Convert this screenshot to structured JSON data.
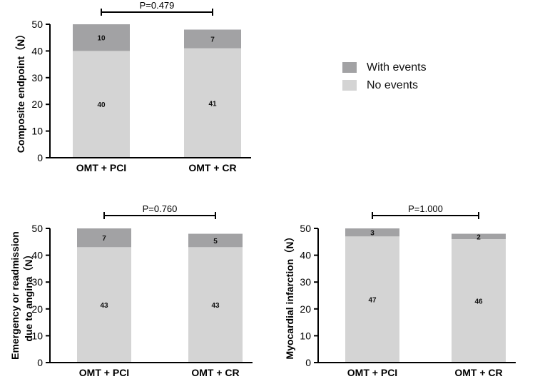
{
  "colors": {
    "with_events": "#a2a2a4",
    "no_events": "#d4d4d4",
    "axis": "#000000"
  },
  "legend": {
    "with_events": "With events",
    "no_events": "No events"
  },
  "chart_data": [
    {
      "type": "bar",
      "stacked": true,
      "categories": [
        "OMT + PCI",
        "OMT + CR"
      ],
      "series": [
        {
          "name": "No events",
          "values": [
            40,
            41
          ]
        },
        {
          "name": "With events",
          "values": [
            10,
            7
          ]
        }
      ],
      "ylabel": "Composite endpoint（N）",
      "ylim": [
        0,
        50
      ],
      "yticks": [
        "0",
        "10",
        "20",
        "30",
        "40",
        "50"
      ],
      "annotation": "P=0.479"
    },
    {
      "type": "bar",
      "stacked": true,
      "categories": [
        "OMT + PCI",
        "OMT + CR"
      ],
      "series": [
        {
          "name": "No events",
          "values": [
            43,
            43
          ]
        },
        {
          "name": "With events",
          "values": [
            7,
            5
          ]
        }
      ],
      "ylabel": [
        "Emergency or readmission",
        "due to angina（N）"
      ],
      "ylim": [
        0,
        50
      ],
      "yticks": [
        "0",
        "10",
        "20",
        "30",
        "40",
        "50"
      ],
      "annotation": "P=0.760"
    },
    {
      "type": "bar",
      "stacked": true,
      "categories": [
        "OMT + PCI",
        "OMT + CR"
      ],
      "series": [
        {
          "name": "No events",
          "values": [
            47,
            46
          ]
        },
        {
          "name": "With events",
          "values": [
            3,
            2
          ]
        }
      ],
      "ylabel": "Myocardial infarction（N）",
      "ylim": [
        0,
        50
      ],
      "yticks": [
        "0",
        "10",
        "20",
        "30",
        "40",
        "50"
      ],
      "annotation": "P=1.000"
    }
  ]
}
